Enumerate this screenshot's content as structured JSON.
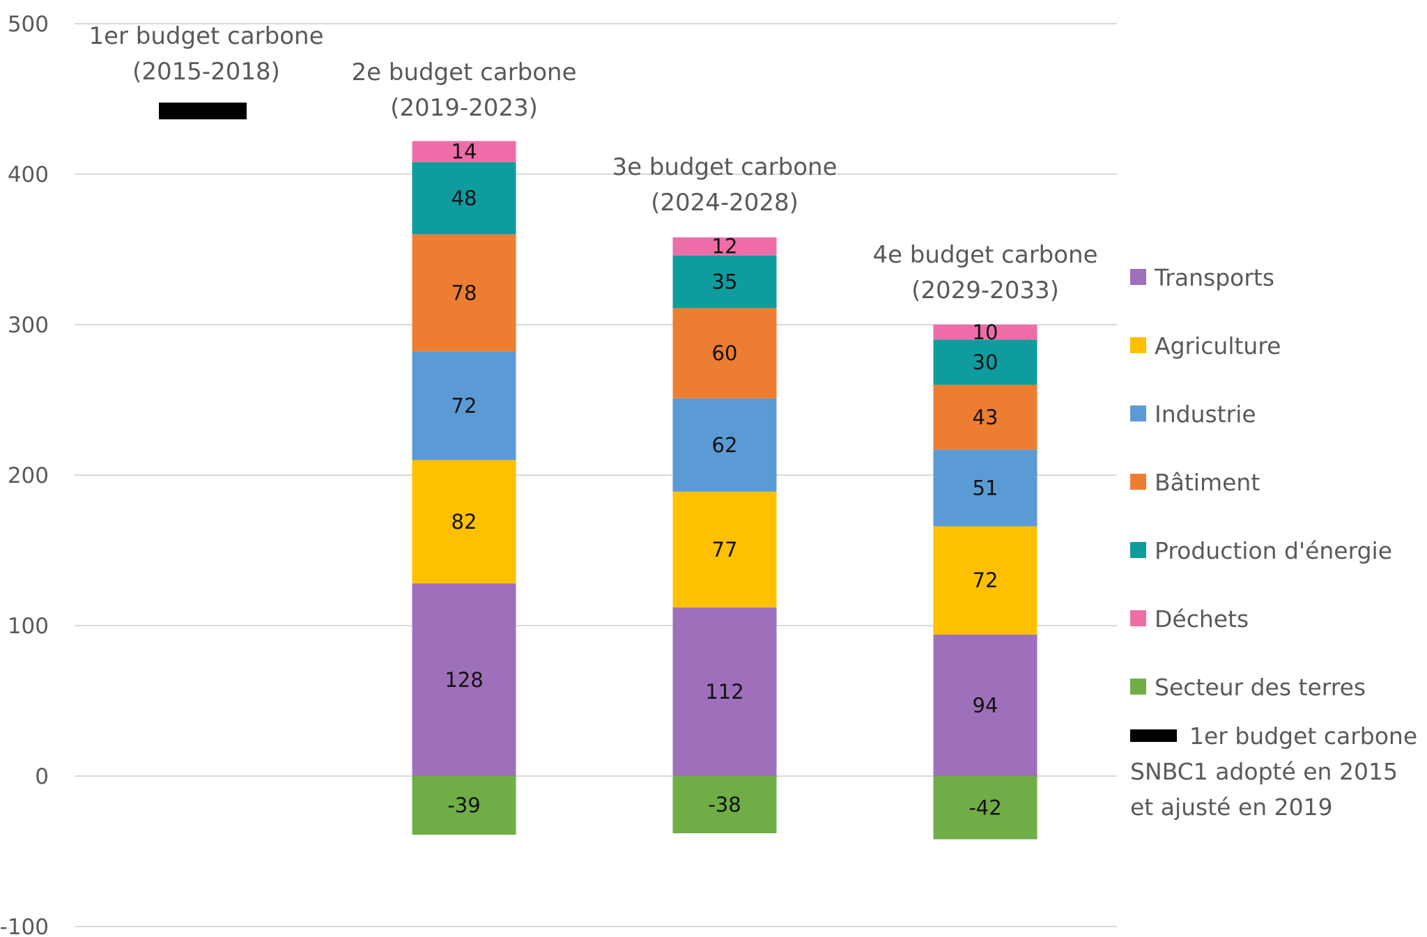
{
  "chart_data": {
    "type": "bar",
    "stacked": true,
    "title": "",
    "xlabel": "",
    "ylabel": "",
    "ylim": [
      -100,
      500
    ],
    "yticks": [
      500,
      400,
      300,
      200,
      100,
      0,
      -100
    ],
    "grid": true,
    "legend_position": "right",
    "categories": [
      [
        "1er budget carbone",
        "(2015-2018)"
      ],
      [
        "2e budget carbone",
        "(2019-2023)"
      ],
      [
        "3e budget carbone",
        "(2024-2028)"
      ],
      [
        "4e budget carbone",
        "(2029-2033)"
      ]
    ],
    "series": [
      {
        "name": "Secteur des terres",
        "color": "#70AD47",
        "values": [
          null,
          -39,
          -38,
          -42
        ]
      },
      {
        "name": "Transports",
        "color": "#9E70BB",
        "values": [
          null,
          128,
          112,
          94
        ]
      },
      {
        "name": "Agriculture",
        "color": "#FFC000",
        "values": [
          null,
          82,
          77,
          72
        ]
      },
      {
        "name": "Industrie",
        "color": "#5B9BD5",
        "values": [
          null,
          72,
          62,
          51
        ]
      },
      {
        "name": "Bâtiment",
        "color": "#ED7D31",
        "values": [
          null,
          78,
          60,
          43
        ]
      },
      {
        "name": "Production d'énergie",
        "color": "#0E9C9E",
        "values": [
          null,
          48,
          35,
          30
        ]
      },
      {
        "name": "Déchets",
        "color": "#EE6DA8",
        "values": [
          null,
          14,
          12,
          10
        ]
      }
    ],
    "marker_series": {
      "name": [
        "1er budget carbone",
        "SNBC1 adopté en 2015",
        "et ajusté en 2019"
      ],
      "color": "#000000",
      "values": [
        442,
        null,
        null,
        null
      ]
    },
    "legend_order": [
      "Transports",
      "Agriculture",
      "Industrie",
      "Bâtiment",
      "Production d'énergie",
      "Déchets",
      "Secteur des terres"
    ]
  }
}
